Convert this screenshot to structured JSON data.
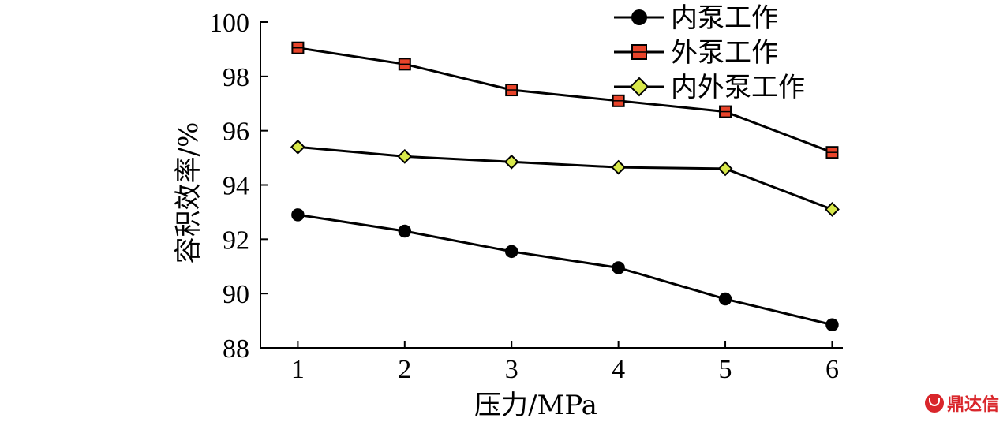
{
  "chart_data": {
    "type": "line",
    "title": "",
    "xlabel": "压力/MPa",
    "ylabel": "容积效率/%",
    "x": [
      1,
      2,
      3,
      4,
      5,
      6
    ],
    "xlim": [
      0.65,
      6.1
    ],
    "ylim": [
      88,
      100
    ],
    "xticks": [
      "1",
      "2",
      "3",
      "4",
      "5",
      "6"
    ],
    "yticks": [
      "88",
      "90",
      "92",
      "94",
      "96",
      "98",
      "100"
    ],
    "grid": false,
    "legend_position": "top-right",
    "series": [
      {
        "name": "内泵工作",
        "marker": "circle",
        "marker_color": "#000000",
        "values": [
          92.9,
          92.3,
          91.55,
          90.95,
          89.8,
          88.85
        ]
      },
      {
        "name": "外泵工作",
        "marker": "square",
        "marker_color": "#e8442a",
        "values": [
          99.05,
          98.45,
          97.5,
          97.1,
          96.7,
          95.2
        ]
      },
      {
        "name": "内外泵工作",
        "marker": "diamond",
        "marker_color": "#d8e84a",
        "values": [
          95.4,
          95.05,
          94.85,
          94.65,
          94.6,
          93.1
        ]
      }
    ]
  },
  "watermark": {
    "text": "鼎达信",
    "icon": "logo-icon"
  }
}
